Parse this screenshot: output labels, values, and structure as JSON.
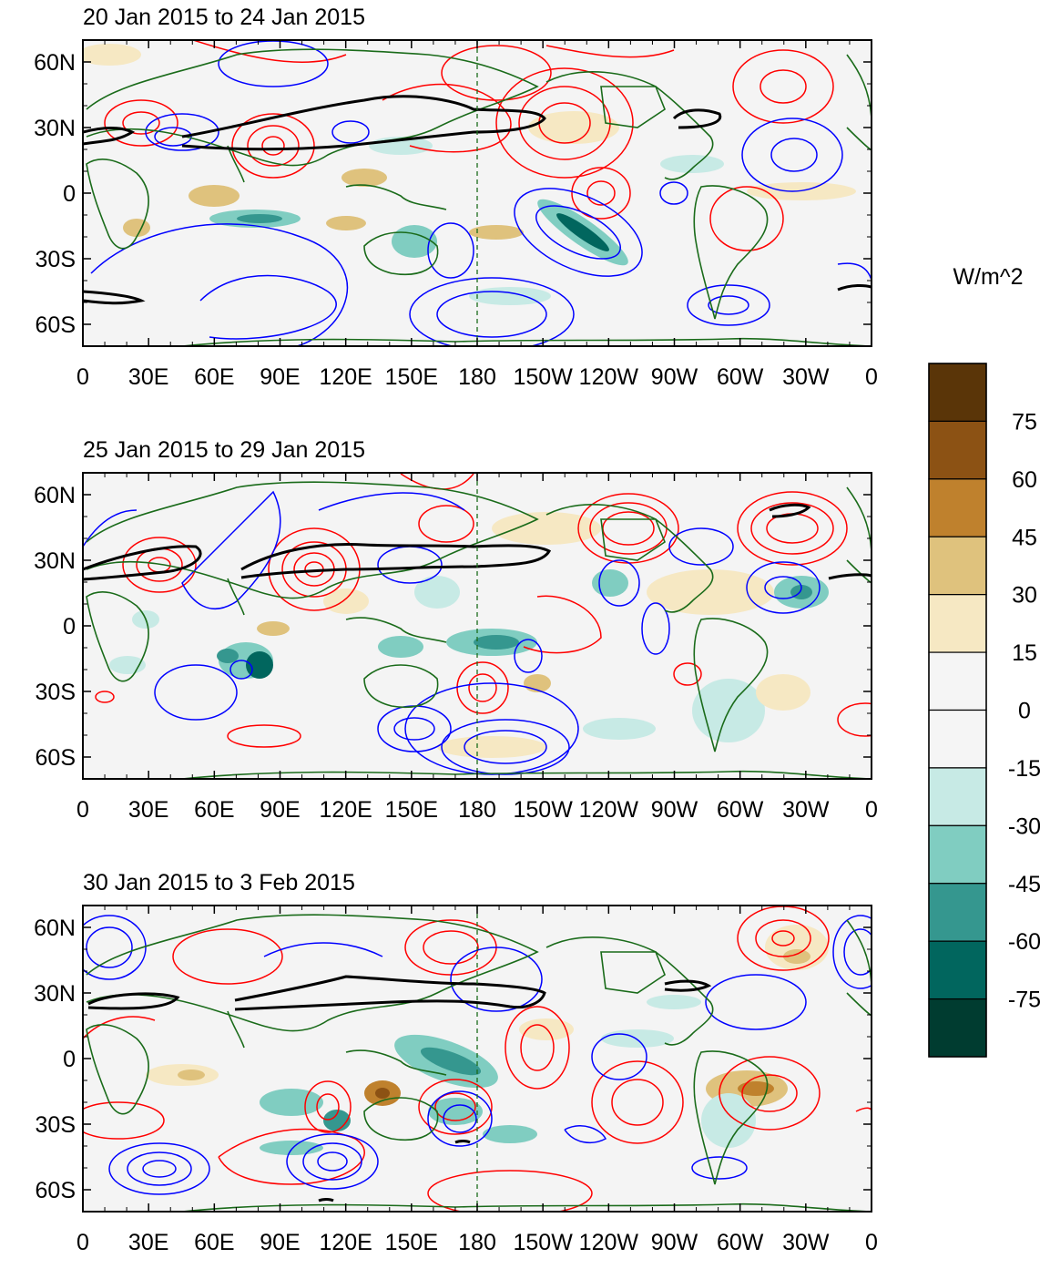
{
  "panels": [
    {
      "title": "20 Jan 2015 to 24 Jan 2015"
    },
    {
      "title": "25 Jan 2015 to 29 Jan 2015"
    },
    {
      "title": "30 Jan 2015 to 3 Feb 2015"
    }
  ],
  "lon_ticks": [
    "0",
    "30E",
    "60E",
    "90E",
    "120E",
    "150E",
    "180",
    "150W",
    "120W",
    "90W",
    "60W",
    "30W",
    "0"
  ],
  "lat_ticks": [
    "60N",
    "30N",
    "0",
    "30S",
    "60S"
  ],
  "colorbar": {
    "units": "W/m^2",
    "labels": [
      "75",
      "60",
      "45",
      "30",
      "15",
      "0",
      "-15",
      "-30",
      "-45",
      "-60",
      "-75"
    ],
    "colors": [
      "#5a3508",
      "#8c5214",
      "#bf812d",
      "#dfc27d",
      "#f6e8c3",
      "#f5f5f5",
      "#f5f5f5",
      "#c7eae5",
      "#80cdc1",
      "#35978f",
      "#01665e",
      "#003c30"
    ]
  },
  "colors": {
    "positive_contour": "#ff0000",
    "negative_contour": "#0000ff",
    "coast": "#1a6b1a",
    "jet": "#000000",
    "background": "#f4f4f4"
  }
}
